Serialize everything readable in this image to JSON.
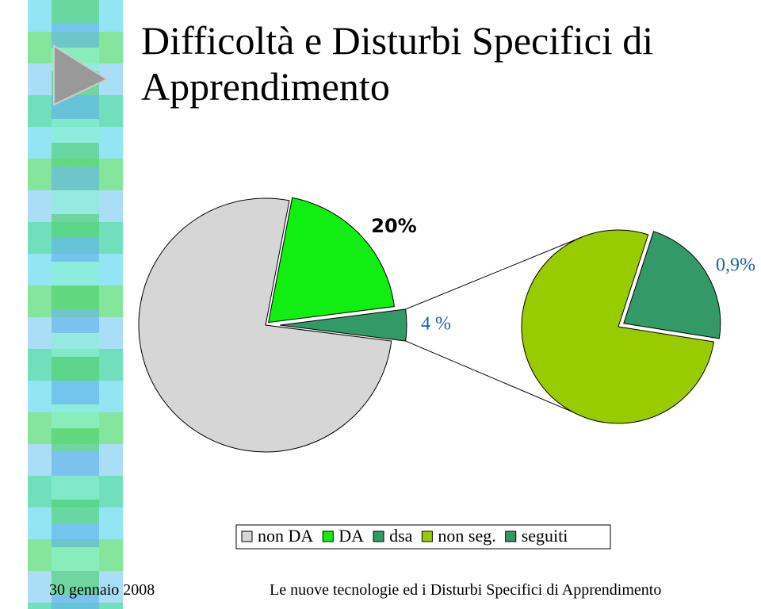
{
  "slide": {
    "title": "Difficoltà e Disturbi Specifici di Apprendimento",
    "footer_date": "30 gennaio 2008",
    "footer_text": "Le nuove tecnologie ed i Disturbi Specifici di Apprendimento"
  },
  "chart_data": {
    "type": "pie-of-pie",
    "pies": [
      {
        "categories": [
          "non DA",
          "DA",
          "dsa"
        ],
        "values": [
          76,
          20,
          4
        ],
        "value_labels": [
          null,
          "20%",
          "4 %"
        ],
        "colors": [
          "#d6d6d6",
          "#11ee11",
          "#339966"
        ]
      },
      {
        "categories": [
          "non seg.",
          "seguiti"
        ],
        "values": [
          3.1,
          0.9
        ],
        "value_labels": [
          null,
          "0,9%"
        ],
        "colors": [
          "#99cc00",
          "#339966"
        ]
      }
    ]
  }
}
